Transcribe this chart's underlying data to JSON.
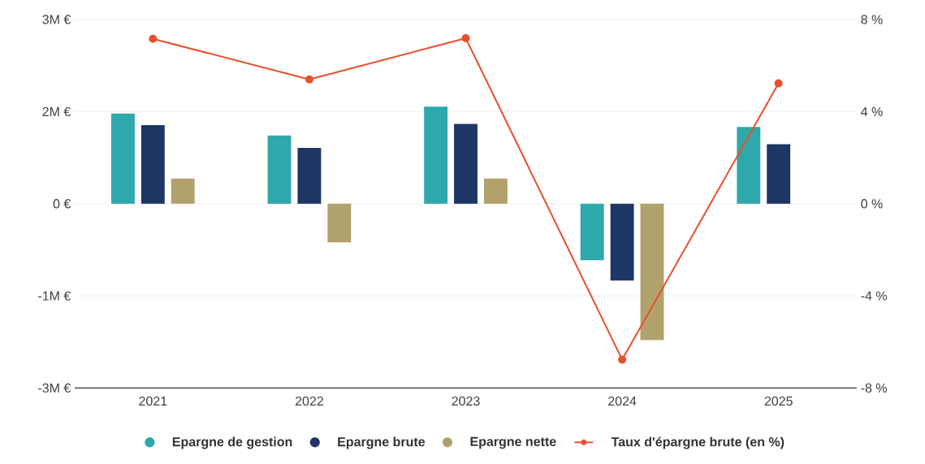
{
  "chart_data": {
    "type": "bar",
    "categories": [
      "2021",
      "2022",
      "2023",
      "2024",
      "2025"
    ],
    "series": [
      {
        "name": "Epargne de gestion",
        "color": "#2ea8ab",
        "values": [
          1.47,
          1.11,
          1.58,
          -0.92,
          1.25
        ]
      },
      {
        "name": "Epargne brute",
        "color": "#1d3665",
        "values": [
          1.28,
          0.91,
          1.3,
          -1.25,
          0.97
        ]
      },
      {
        "name": "Epargne nette",
        "color": "#b1a26d",
        "values": [
          0.41,
          -0.63,
          0.41,
          -2.22,
          null
        ]
      },
      {
        "name": "Taux d'épargne brute (en %)",
        "color": "#e8502a",
        "type": "line",
        "axis": "y2",
        "marker": "circle",
        "values": [
          7.16,
          5.4,
          7.19,
          -6.77,
          5.23
        ]
      }
    ],
    "ylim": [
      -3,
      3
    ],
    "yticks": [
      {
        "value": -3,
        "label": "-3M €"
      },
      {
        "value": -1.5,
        "label": "-1M €"
      },
      {
        "value": 0,
        "label": "0 €"
      },
      {
        "value": 1.5,
        "label": "2M €"
      },
      {
        "value": 3,
        "label": "3M €"
      }
    ],
    "y2lim": [
      -8,
      8
    ],
    "y2ticks": [
      {
        "value": -8,
        "label": "-8 %"
      },
      {
        "value": -4,
        "label": "-4 %"
      },
      {
        "value": 0,
        "label": "0 %"
      },
      {
        "value": 4,
        "label": "4 %"
      },
      {
        "value": 8,
        "label": "8 %"
      }
    ],
    "grid": "y",
    "legend": "bottom"
  }
}
